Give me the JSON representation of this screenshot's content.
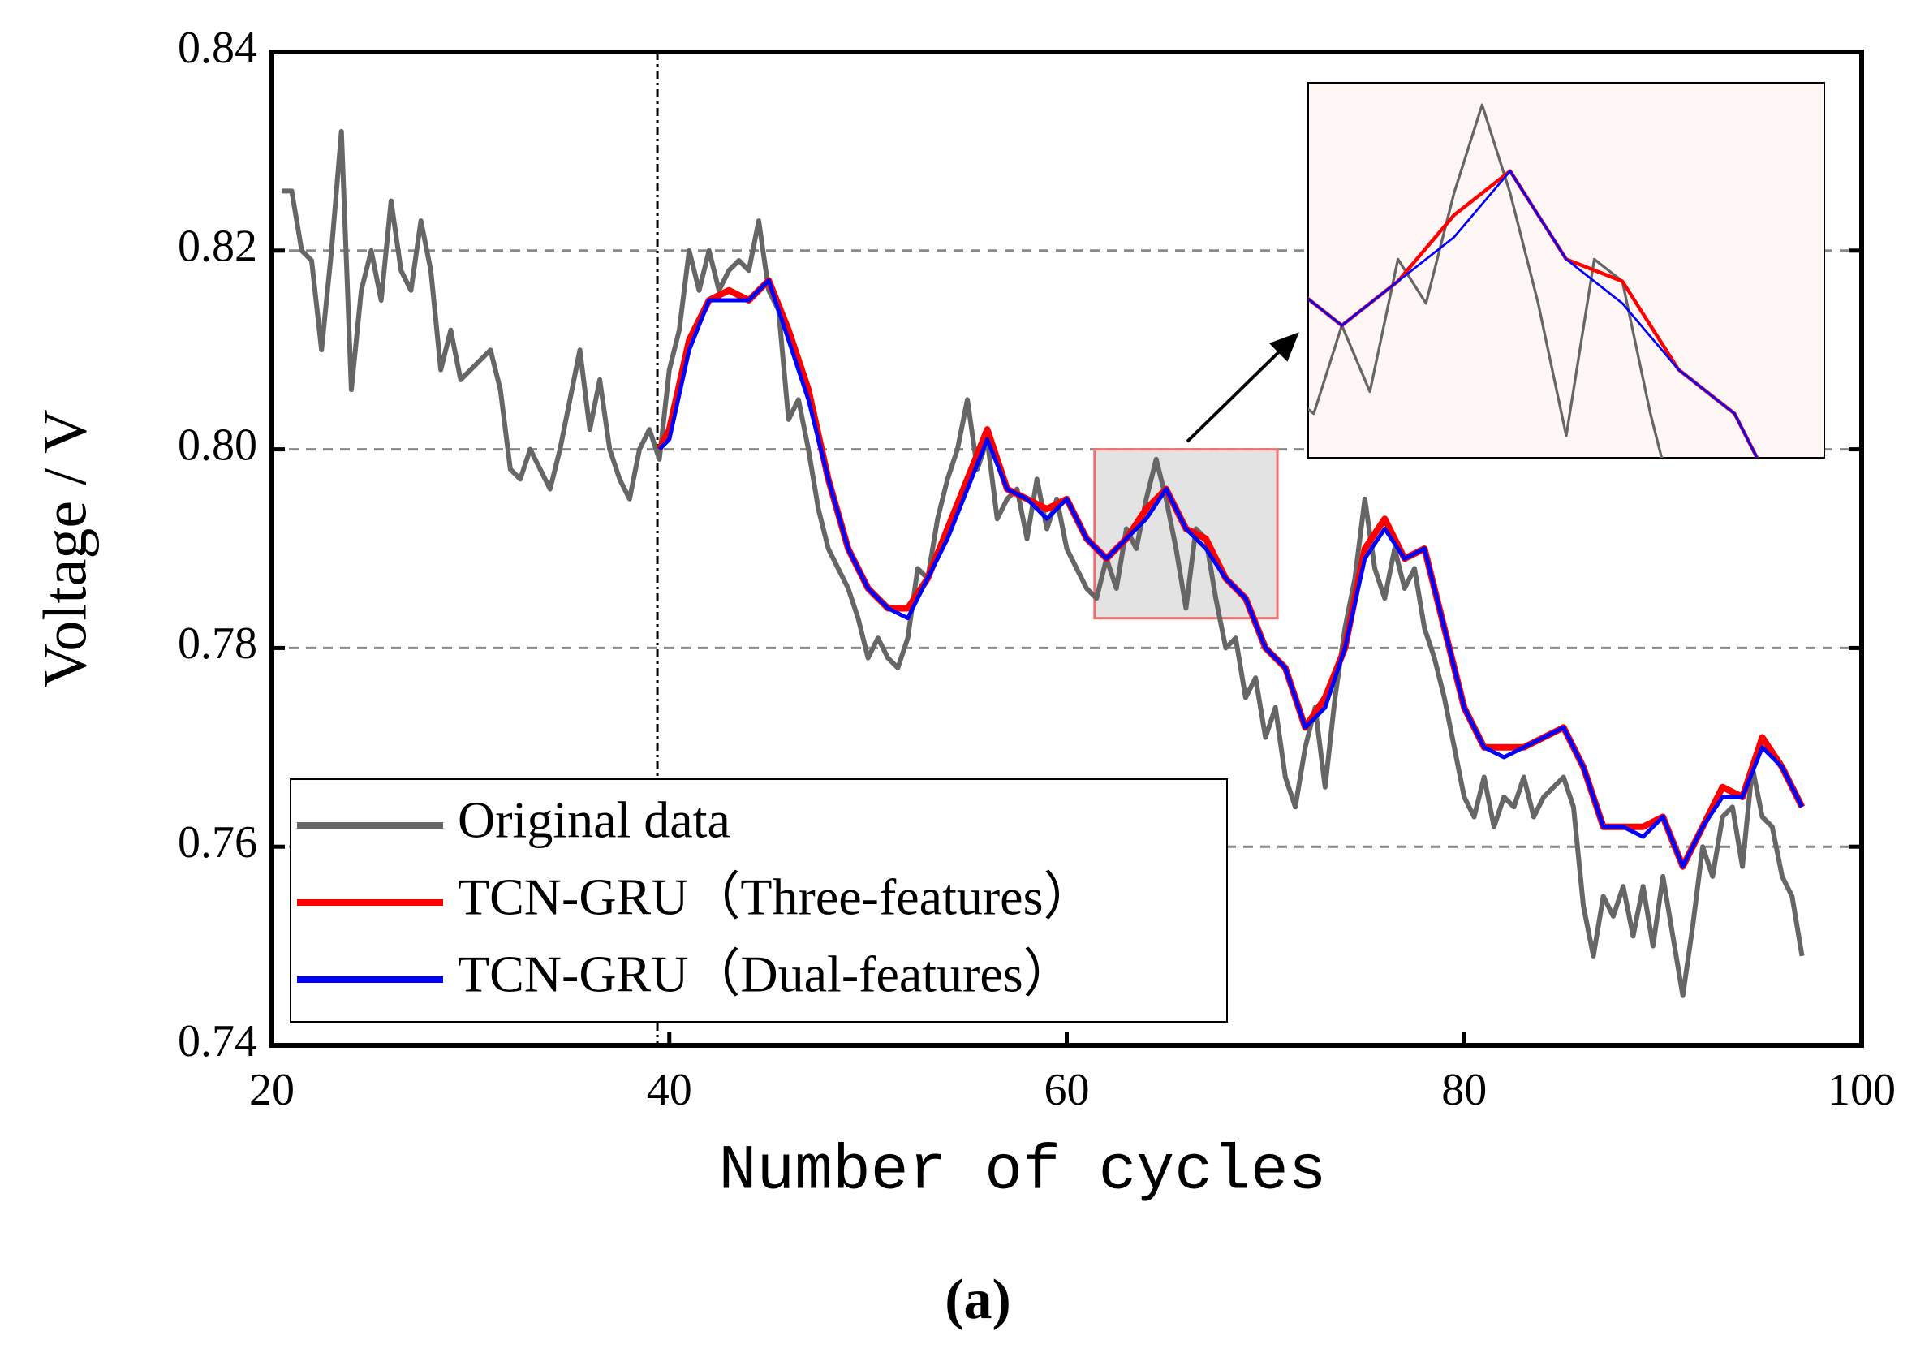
{
  "chart_data": {
    "type": "line",
    "xlabel": "Number of cycles",
    "ylabel": "Voltage / V",
    "caption": "(a)",
    "xlim": [
      20,
      100
    ],
    "xticks": [
      20,
      40,
      60,
      80,
      100
    ],
    "ylim": [
      0.74,
      0.84
    ],
    "yticks": [
      0.74,
      0.76,
      0.78,
      {
        "value": 0.8,
        "label": "0.80"
      },
      0.82,
      0.84
    ],
    "grid": true,
    "legend": "lower left",
    "vline": 39.4,
    "zoom": {
      "xlim": [
        61.4,
        70.6
      ],
      "ylim": [
        0.783,
        0.8
      ]
    },
    "series": [
      {
        "name": "Original data",
        "color": "#666666",
        "x": [
          20.5,
          21,
          21.5,
          22,
          22.5,
          23,
          23.5,
          24,
          24.5,
          25,
          25.5,
          26,
          26.5,
          27,
          27.5,
          28,
          28.5,
          29,
          29.5,
          30,
          30.5,
          31,
          31.5,
          32,
          32.5,
          33,
          33.5,
          34,
          34.5,
          35,
          35.5,
          36,
          36.5,
          37,
          37.5,
          38,
          38.5,
          39,
          39.5,
          40,
          40.5,
          41,
          41.5,
          42,
          42.5,
          43,
          43.5,
          44,
          44.5,
          45,
          45.5,
          46,
          46.5,
          47,
          47.5,
          48,
          48.5,
          49,
          49.5,
          50,
          50.5,
          51,
          51.5,
          52,
          52.5,
          53,
          53.5,
          54,
          54.5,
          55,
          55.5,
          56,
          56.5,
          57,
          57.5,
          58,
          58.5,
          59,
          59.5,
          60,
          60.5,
          61,
          61.5,
          62,
          62.5,
          63,
          63.5,
          64,
          64.5,
          65,
          65.5,
          66,
          66.5,
          67,
          67.5,
          68,
          68.5,
          69,
          69.5,
          70,
          70.5,
          71,
          71.5,
          72,
          72.5,
          73,
          73.5,
          74,
          74.5,
          75,
          75.5,
          76,
          76.5,
          77,
          77.5,
          78,
          78.5,
          79,
          79.5,
          80,
          80.5,
          81,
          81.5,
          82,
          82.5,
          83,
          83.5,
          84,
          84.5,
          85,
          85.5,
          86,
          86.5,
          87,
          87.5,
          88,
          88.5,
          89,
          89.5,
          90,
          90.5,
          91,
          91.5,
          92,
          92.5,
          93,
          93.5,
          94,
          94.5,
          95,
          95.5,
          96,
          96.5,
          97
        ],
        "values": [
          0.826,
          0.826,
          0.82,
          0.819,
          0.81,
          0.82,
          0.832,
          0.806,
          0.816,
          0.82,
          0.815,
          0.825,
          0.818,
          0.816,
          0.823,
          0.818,
          0.808,
          0.812,
          0.807,
          0.808,
          0.809,
          0.81,
          0.806,
          0.798,
          0.797,
          0.8,
          0.798,
          0.796,
          0.8,
          0.805,
          0.81,
          0.802,
          0.807,
          0.8,
          0.797,
          0.795,
          0.8,
          0.802,
          0.799,
          0.808,
          0.812,
          0.82,
          0.816,
          0.82,
          0.816,
          0.818,
          0.819,
          0.818,
          0.823,
          0.816,
          0.814,
          0.803,
          0.805,
          0.8,
          0.794,
          0.79,
          0.788,
          0.786,
          0.783,
          0.779,
          0.781,
          0.779,
          0.778,
          0.781,
          0.788,
          0.787,
          0.793,
          0.797,
          0.8,
          0.805,
          0.798,
          0.801,
          0.793,
          0.795,
          0.796,
          0.791,
          0.797,
          0.792,
          0.795,
          0.79,
          0.788,
          0.786,
          0.785,
          0.789,
          0.786,
          0.792,
          0.79,
          0.795,
          0.799,
          0.795,
          0.79,
          0.784,
          0.792,
          0.791,
          0.785,
          0.78,
          0.781,
          0.775,
          0.777,
          0.771,
          0.774,
          0.767,
          0.764,
          0.77,
          0.774,
          0.766,
          0.775,
          0.782,
          0.787,
          0.795,
          0.788,
          0.785,
          0.79,
          0.786,
          0.788,
          0.782,
          0.779,
          0.775,
          0.77,
          0.765,
          0.763,
          0.767,
          0.762,
          0.765,
          0.764,
          0.767,
          0.763,
          0.765,
          0.766,
          0.767,
          0.764,
          0.754,
          0.749,
          0.755,
          0.753,
          0.756,
          0.751,
          0.756,
          0.75,
          0.757,
          0.751,
          0.745,
          0.752,
          0.76,
          0.757,
          0.763,
          0.764,
          0.758,
          0.768,
          0.763,
          0.762,
          0.757,
          0.755,
          0.749
        ]
      },
      {
        "name": "TCN-GRU（Three-features）",
        "color": "#ff0000",
        "x": [
          39.5,
          40,
          41,
          42,
          43,
          44,
          45,
          46,
          47,
          48,
          49,
          50,
          51,
          52,
          53,
          54,
          55,
          56,
          57,
          58,
          59,
          60,
          61,
          62,
          63,
          64,
          65,
          66,
          67,
          68,
          69,
          70,
          71,
          72,
          73,
          74,
          75,
          76,
          77,
          78,
          79,
          80,
          81,
          82,
          83,
          84,
          85,
          86,
          87,
          88,
          89,
          90,
          91,
          92,
          93,
          94,
          95,
          96,
          97
        ],
        "values": [
          0.8,
          0.802,
          0.811,
          0.815,
          0.816,
          0.815,
          0.817,
          0.812,
          0.806,
          0.797,
          0.79,
          0.786,
          0.784,
          0.784,
          0.787,
          0.792,
          0.797,
          0.802,
          0.796,
          0.795,
          0.794,
          0.795,
          0.791,
          0.789,
          0.791,
          0.794,
          0.796,
          0.792,
          0.791,
          0.787,
          0.785,
          0.78,
          0.778,
          0.772,
          0.775,
          0.78,
          0.79,
          0.793,
          0.789,
          0.79,
          0.782,
          0.774,
          0.77,
          0.77,
          0.77,
          0.771,
          0.772,
          0.768,
          0.762,
          0.762,
          0.762,
          0.763,
          0.758,
          0.762,
          0.766,
          0.765,
          0.771,
          0.768,
          0.764
        ]
      },
      {
        "name": "TCN-GRU（Dual-features）",
        "color": "#0000ff",
        "x": [
          39.5,
          40,
          41,
          42,
          43,
          44,
          45,
          46,
          47,
          48,
          49,
          50,
          51,
          52,
          53,
          54,
          55,
          56,
          57,
          58,
          59,
          60,
          61,
          62,
          63,
          64,
          65,
          66,
          67,
          68,
          69,
          70,
          71,
          72,
          73,
          74,
          75,
          76,
          77,
          78,
          79,
          80,
          81,
          82,
          83,
          84,
          85,
          86,
          87,
          88,
          89,
          90,
          91,
          92,
          93,
          94,
          95,
          96,
          97
        ],
        "values": [
          0.8,
          0.801,
          0.81,
          0.815,
          0.815,
          0.815,
          0.817,
          0.811,
          0.805,
          0.797,
          0.79,
          0.786,
          0.784,
          0.783,
          0.787,
          0.791,
          0.796,
          0.801,
          0.796,
          0.795,
          0.793,
          0.795,
          0.791,
          0.789,
          0.791,
          0.793,
          0.796,
          0.792,
          0.79,
          0.787,
          0.785,
          0.78,
          0.778,
          0.772,
          0.774,
          0.78,
          0.789,
          0.792,
          0.789,
          0.79,
          0.782,
          0.774,
          0.77,
          0.769,
          0.77,
          0.771,
          0.772,
          0.768,
          0.762,
          0.762,
          0.761,
          0.763,
          0.758,
          0.762,
          0.765,
          0.765,
          0.77,
          0.768,
          0.764
        ]
      }
    ]
  }
}
